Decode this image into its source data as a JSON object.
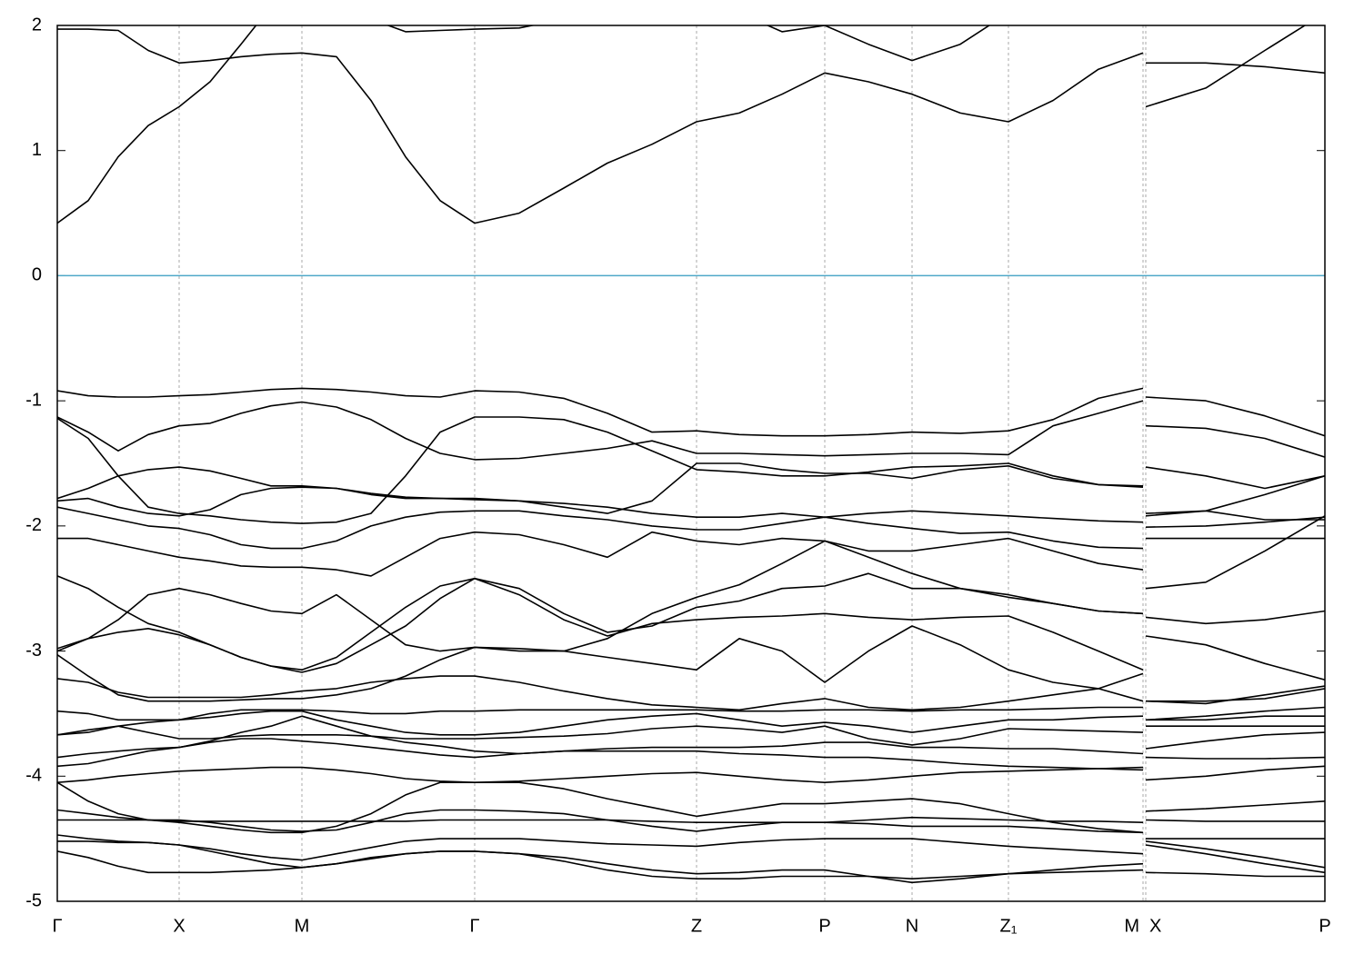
{
  "chart_data": {
    "type": "line",
    "color": "#000000",
    "reference_line": {
      "value": 0,
      "color": "#4fa8c8"
    },
    "grid": true,
    "xlim": [
      0,
      1394
    ],
    "ylim": [
      -5,
      2
    ],
    "yticks": [
      -5,
      -4,
      -3,
      -2,
      -1,
      0,
      1,
      2
    ],
    "xticks": [
      {
        "value": 0,
        "label": "Γ"
      },
      {
        "value": 134,
        "label": "X"
      },
      {
        "value": 269,
        "label": "M"
      },
      {
        "value": 459,
        "label": "Γ"
      },
      {
        "value": 703,
        "label": "Z"
      },
      {
        "value": 844,
        "label": "P"
      },
      {
        "value": 940,
        "label": "N"
      },
      {
        "value": 1046,
        "label": "Z₁"
      },
      {
        "value": 1194,
        "label": "M"
      },
      {
        "value": 1197,
        "label": "X"
      },
      {
        "value": 1394,
        "label": "P"
      }
    ],
    "x": [
      0,
      34,
      67,
      100,
      134,
      168,
      202,
      235,
      269,
      307,
      345,
      383,
      421,
      459,
      508,
      557,
      605,
      654,
      703,
      750,
      797,
      844,
      892,
      940,
      993,
      1046,
      1095,
      1145,
      1194,
      1195.5,
      1197,
      1263,
      1328,
      1394
    ],
    "series": [
      {
        "values": [
          0.42,
          0.6,
          0.95,
          1.2,
          1.35,
          1.55,
          1.85,
          2.15,
          2.3,
          2.2,
          2.05,
          1.95,
          1.96,
          1.97,
          1.98,
          2.05,
          2.2,
          2.3,
          2.3,
          2.1,
          1.95,
          2.0,
          1.85,
          1.72,
          1.85,
          2.1,
          2.25,
          2.3,
          2.3,
          null,
          1.7,
          1.7,
          1.67,
          1.62
        ]
      },
      {
        "values": [
          1.97,
          1.97,
          1.96,
          1.8,
          1.7,
          1.72,
          1.75,
          1.77,
          1.78,
          1.75,
          1.4,
          0.95,
          0.6,
          0.42,
          0.5,
          0.7,
          0.9,
          1.05,
          1.23,
          1.3,
          1.45,
          1.62,
          1.55,
          1.45,
          1.3,
          1.23,
          1.4,
          1.65,
          1.78,
          null,
          1.35,
          1.5,
          1.8,
          2.1
        ]
      },
      {
        "values": [
          -0.92,
          -0.96,
          -0.97,
          -0.97,
          -0.96,
          -0.95,
          -0.93,
          -0.91,
          -0.9,
          -0.91,
          -0.93,
          -0.96,
          -0.97,
          -0.92,
          -0.93,
          -0.98,
          -1.1,
          -1.25,
          -1.24,
          -1.27,
          -1.28,
          -1.28,
          -1.27,
          -1.25,
          -1.26,
          -1.24,
          -1.15,
          -0.98,
          -0.9,
          null,
          -0.97,
          -1.0,
          -1.12,
          -1.28
        ]
      },
      {
        "values": [
          -1.13,
          -1.25,
          -1.4,
          -1.27,
          -1.2,
          -1.18,
          -1.1,
          -1.04,
          -1.01,
          -1.05,
          -1.15,
          -1.3,
          -1.42,
          -1.47,
          -1.46,
          -1.42,
          -1.38,
          -1.32,
          -1.42,
          -1.42,
          -1.43,
          -1.44,
          -1.43,
          -1.42,
          -1.42,
          -1.43,
          -1.2,
          -1.1,
          -1.0,
          null,
          -1.2,
          -1.22,
          -1.3,
          -1.45
        ]
      },
      {
        "values": [
          -1.78,
          -1.7,
          -1.6,
          -1.55,
          -1.53,
          -1.56,
          -1.62,
          -1.68,
          -1.68,
          -1.7,
          -1.74,
          -1.77,
          -1.78,
          -1.79,
          -1.8,
          -1.82,
          -1.85,
          -1.9,
          -1.93,
          -1.93,
          -1.9,
          -1.93,
          -1.9,
          -1.88,
          -1.9,
          -1.92,
          -1.94,
          -1.96,
          -1.97,
          null,
          -1.53,
          -1.6,
          -1.7,
          -1.6
        ]
      },
      {
        "values": [
          -1.14,
          -1.3,
          -1.6,
          -1.85,
          -1.9,
          -1.92,
          -1.95,
          -1.97,
          -1.98,
          -1.97,
          -1.9,
          -1.6,
          -1.25,
          -1.13,
          -1.13,
          -1.15,
          -1.25,
          -1.4,
          -1.55,
          -1.57,
          -1.6,
          -1.6,
          -1.57,
          -1.53,
          -1.52,
          -1.5,
          -1.6,
          -1.67,
          -1.68,
          null,
          -1.9,
          -1.88,
          -1.75,
          -1.6
        ]
      },
      {
        "values": [
          -1.8,
          -1.78,
          -1.85,
          -1.9,
          -1.92,
          -1.87,
          -1.75,
          -1.7,
          -1.69,
          -1.7,
          -1.75,
          -1.78,
          -1.78,
          -1.78,
          -1.8,
          -1.85,
          -1.9,
          -1.8,
          -1.5,
          -1.5,
          -1.55,
          -1.58,
          -1.58,
          -1.62,
          -1.55,
          -1.52,
          -1.62,
          -1.67,
          -1.69,
          null,
          -1.92,
          -1.88,
          -1.95,
          -1.95
        ]
      },
      {
        "values": [
          -1.85,
          -1.9,
          -1.95,
          -2.0,
          -2.02,
          -2.07,
          -2.15,
          -2.18,
          -2.18,
          -2.12,
          -2.0,
          -1.93,
          -1.89,
          -1.88,
          -1.88,
          -1.92,
          -1.95,
          -2.0,
          -2.03,
          -2.03,
          -1.98,
          -1.93,
          -1.98,
          -2.02,
          -2.06,
          -2.05,
          -2.12,
          -2.17,
          -2.18,
          null,
          -2.01,
          -2.0,
          -1.97,
          -1.93
        ]
      },
      {
        "values": [
          -2.1,
          -2.1,
          -2.15,
          -2.2,
          -2.25,
          -2.28,
          -2.32,
          -2.33,
          -2.33,
          -2.35,
          -2.4,
          -2.25,
          -2.1,
          -2.05,
          -2.07,
          -2.15,
          -2.25,
          -2.05,
          -2.12,
          -2.15,
          -2.1,
          -2.12,
          -2.2,
          -2.2,
          -2.15,
          -2.1,
          -2.2,
          -2.3,
          -2.35,
          null,
          -2.1,
          -2.1,
          -2.1,
          -2.1
        ]
      },
      {
        "values": [
          -2.4,
          -2.5,
          -2.65,
          -2.78,
          -2.85,
          -2.95,
          -3.05,
          -3.12,
          -3.15,
          -3.05,
          -2.85,
          -2.65,
          -2.48,
          -2.42,
          -2.5,
          -2.7,
          -2.85,
          -2.8,
          -2.65,
          -2.6,
          -2.5,
          -2.48,
          -2.38,
          -2.5,
          -2.5,
          -2.55,
          -2.62,
          -2.68,
          -2.7,
          null,
          -2.5,
          -2.45,
          -2.2,
          -1.92
        ]
      },
      {
        "values": [
          -2.98,
          -2.9,
          -2.75,
          -2.55,
          -2.5,
          -2.55,
          -2.62,
          -2.68,
          -2.7,
          -2.55,
          -2.75,
          -2.95,
          -3.0,
          -2.97,
          -3.0,
          -3.0,
          -2.9,
          -2.7,
          -2.57,
          -2.47,
          -2.3,
          -2.12,
          -2.25,
          -2.38,
          -2.5,
          -2.57,
          -2.62,
          -2.68,
          -2.7,
          null,
          -2.73,
          -2.78,
          -2.75,
          -2.68
        ]
      },
      {
        "values": [
          -3.0,
          -2.9,
          -2.85,
          -2.82,
          -2.87,
          -2.95,
          -3.05,
          -3.12,
          -3.17,
          -3.1,
          -2.95,
          -2.8,
          -2.58,
          -2.42,
          -2.55,
          -2.75,
          -2.88,
          -2.78,
          -2.75,
          -2.73,
          -2.72,
          -2.7,
          -2.73,
          -2.75,
          -2.73,
          -2.72,
          -2.85,
          -3.0,
          -3.15,
          null,
          -2.88,
          -2.95,
          -3.1,
          -3.23
        ]
      },
      {
        "values": [
          -3.03,
          -3.2,
          -3.35,
          -3.4,
          -3.4,
          -3.4,
          -3.39,
          -3.38,
          -3.38,
          -3.35,
          -3.3,
          -3.2,
          -3.07,
          -2.97,
          -2.98,
          -3.0,
          -3.05,
          -3.1,
          -3.15,
          -2.9,
          -3.0,
          -3.25,
          -3.0,
          -2.8,
          -2.95,
          -3.15,
          -3.25,
          -3.3,
          -3.4,
          null,
          -3.4,
          -3.42,
          -3.35,
          -3.28
        ]
      },
      {
        "values": [
          -3.22,
          -3.25,
          -3.33,
          -3.37,
          -3.37,
          -3.37,
          -3.37,
          -3.35,
          -3.32,
          -3.3,
          -3.25,
          -3.22,
          -3.2,
          -3.2,
          -3.25,
          -3.32,
          -3.38,
          -3.43,
          -3.45,
          -3.47,
          -3.42,
          -3.38,
          -3.45,
          -3.47,
          -3.45,
          -3.4,
          -3.35,
          -3.3,
          -3.18,
          null,
          -3.4,
          -3.4,
          -3.38,
          -3.3
        ]
      },
      {
        "values": [
          -3.48,
          -3.5,
          -3.55,
          -3.55,
          -3.55,
          -3.5,
          -3.47,
          -3.47,
          -3.47,
          -3.48,
          -3.5,
          -3.5,
          -3.48,
          -3.48,
          -3.47,
          -3.47,
          -3.47,
          -3.47,
          -3.47,
          -3.48,
          -3.48,
          -3.47,
          -3.47,
          -3.48,
          -3.47,
          -3.47,
          -3.46,
          -3.45,
          -3.45,
          null,
          -3.55,
          -3.52,
          -3.48,
          -3.45
        ]
      },
      {
        "values": [
          -3.67,
          -3.65,
          -3.6,
          -3.57,
          -3.55,
          -3.53,
          -3.5,
          -3.48,
          -3.48,
          -3.55,
          -3.6,
          -3.65,
          -3.67,
          -3.67,
          -3.65,
          -3.6,
          -3.55,
          -3.52,
          -3.5,
          -3.55,
          -3.6,
          -3.57,
          -3.6,
          -3.65,
          -3.6,
          -3.55,
          -3.55,
          -3.53,
          -3.52,
          null,
          -3.55,
          -3.55,
          -3.52,
          -3.52
        ]
      },
      {
        "values": [
          -3.67,
          -3.63,
          -3.6,
          -3.65,
          -3.7,
          -3.7,
          -3.68,
          -3.67,
          -3.67,
          -3.67,
          -3.68,
          -3.7,
          -3.7,
          -3.7,
          -3.69,
          -3.68,
          -3.66,
          -3.62,
          -3.6,
          -3.62,
          -3.65,
          -3.6,
          -3.7,
          -3.75,
          -3.7,
          -3.62,
          -3.63,
          -3.64,
          -3.65,
          null,
          -3.6,
          -3.6,
          -3.6,
          -3.6
        ]
      },
      {
        "values": [
          -3.85,
          -3.82,
          -3.8,
          -3.78,
          -3.77,
          -3.73,
          -3.7,
          -3.7,
          -3.72,
          -3.74,
          -3.77,
          -3.8,
          -3.83,
          -3.85,
          -3.82,
          -3.8,
          -3.78,
          -3.77,
          -3.77,
          -3.77,
          -3.76,
          -3.73,
          -3.73,
          -3.77,
          -3.77,
          -3.78,
          -3.78,
          -3.8,
          -3.82,
          null,
          -3.78,
          -3.72,
          -3.67,
          -3.65
        ]
      },
      {
        "values": [
          -3.92,
          -3.9,
          -3.85,
          -3.8,
          -3.77,
          -3.72,
          -3.65,
          -3.6,
          -3.52,
          -3.6,
          -3.68,
          -3.73,
          -3.76,
          -3.8,
          -3.82,
          -3.8,
          -3.8,
          -3.8,
          -3.8,
          -3.82,
          -3.83,
          -3.85,
          -3.85,
          -3.87,
          -3.9,
          -3.92,
          -3.93,
          -3.94,
          -3.95,
          null,
          -3.85,
          -3.86,
          -3.86,
          -3.85
        ]
      },
      {
        "values": [
          -4.05,
          -4.03,
          -4.0,
          -3.98,
          -3.96,
          -3.95,
          -3.94,
          -3.93,
          -3.93,
          -3.95,
          -3.98,
          -4.02,
          -4.04,
          -4.05,
          -4.04,
          -4.02,
          -4.0,
          -3.98,
          -3.97,
          -4.0,
          -4.03,
          -4.05,
          -4.03,
          -4.0,
          -3.97,
          -3.96,
          -3.95,
          -3.94,
          -3.93,
          null,
          -4.03,
          -4.0,
          -3.95,
          -3.92
        ]
      },
      {
        "values": [
          -4.05,
          -4.2,
          -4.3,
          -4.35,
          -4.37,
          -4.4,
          -4.43,
          -4.45,
          -4.45,
          -4.4,
          -4.3,
          -4.15,
          -4.05,
          -4.05,
          -4.05,
          -4.1,
          -4.18,
          -4.25,
          -4.32,
          -4.27,
          -4.22,
          -4.22,
          -4.2,
          -4.18,
          -4.22,
          -4.3,
          -4.37,
          -4.42,
          -4.45,
          null,
          -4.28,
          -4.26,
          -4.23,
          -4.2
        ]
      },
      {
        "values": [
          -4.27,
          -4.3,
          -4.33,
          -4.35,
          -4.35,
          -4.37,
          -4.4,
          -4.43,
          -4.44,
          -4.43,
          -4.37,
          -4.3,
          -4.27,
          -4.27,
          -4.28,
          -4.3,
          -4.35,
          -4.4,
          -4.44,
          -4.4,
          -4.37,
          -4.37,
          -4.35,
          -4.33,
          -4.34,
          -4.35,
          -4.36,
          -4.36,
          -4.37,
          null,
          -4.35,
          -4.36,
          -4.36,
          -4.36
        ]
      },
      {
        "values": [
          -4.35,
          -4.35,
          -4.35,
          -4.35,
          -4.36,
          -4.36,
          -4.36,
          -4.36,
          -4.36,
          -4.36,
          -4.36,
          -4.36,
          -4.35,
          -4.35,
          -4.35,
          -4.35,
          -4.35,
          -4.36,
          -4.37,
          -4.37,
          -4.37,
          -4.37,
          -4.38,
          -4.4,
          -4.4,
          -4.4,
          -4.42,
          -4.44,
          -4.45,
          null,
          -4.5,
          -4.5,
          -4.5,
          -4.5
        ]
      },
      {
        "values": [
          -4.47,
          -4.5,
          -4.52,
          -4.53,
          -4.55,
          -4.58,
          -4.62,
          -4.65,
          -4.67,
          -4.62,
          -4.57,
          -4.52,
          -4.5,
          -4.5,
          -4.5,
          -4.52,
          -4.54,
          -4.55,
          -4.56,
          -4.53,
          -4.51,
          -4.5,
          -4.5,
          -4.5,
          -4.53,
          -4.56,
          -4.58,
          -4.6,
          -4.62,
          null,
          -4.52,
          -4.58,
          -4.65,
          -4.73
        ]
      },
      {
        "values": [
          -4.52,
          -4.52,
          -4.53,
          -4.53,
          -4.55,
          -4.6,
          -4.65,
          -4.7,
          -4.73,
          -4.7,
          -4.65,
          -4.62,
          -4.6,
          -4.6,
          -4.62,
          -4.65,
          -4.7,
          -4.75,
          -4.78,
          -4.77,
          -4.75,
          -4.75,
          -4.8,
          -4.85,
          -4.82,
          -4.78,
          -4.75,
          -4.72,
          -4.7,
          null,
          -4.55,
          -4.62,
          -4.7,
          -4.77
        ]
      },
      {
        "values": [
          -4.6,
          -4.65,
          -4.72,
          -4.77,
          -4.77,
          -4.77,
          -4.76,
          -4.75,
          -4.73,
          -4.7,
          -4.66,
          -4.62,
          -4.6,
          -4.6,
          -4.62,
          -4.68,
          -4.75,
          -4.8,
          -4.82,
          -4.82,
          -4.8,
          -4.8,
          -4.8,
          -4.82,
          -4.8,
          -4.78,
          -4.77,
          -4.76,
          -4.75,
          null,
          -4.77,
          -4.78,
          -4.8,
          -4.8
        ]
      }
    ]
  }
}
